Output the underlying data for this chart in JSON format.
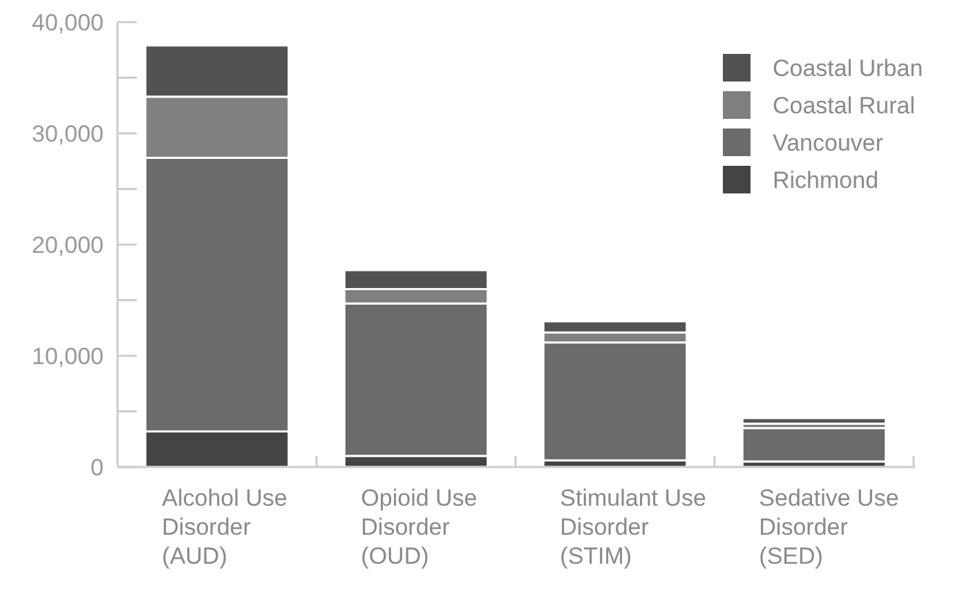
{
  "chart_data": {
    "type": "bar",
    "stacked": true,
    "categories": [
      "Alcohol Use\nDisorder\n(AUD)",
      "Opioid Use\nDisorder\n(OUD)",
      "Stimulant Use\nDisorder\n(STIM)",
      "Sedative Use\nDisorder\n(SED)"
    ],
    "series": [
      {
        "name": "Richmond",
        "color": "#444444",
        "values": [
          3200,
          1000,
          600,
          500
        ]
      },
      {
        "name": "Vancouver",
        "color": "#6b6b6b",
        "values": [
          24600,
          13700,
          10600,
          3000
        ]
      },
      {
        "name": "Coastal Rural",
        "color": "#808080",
        "values": [
          5500,
          1300,
          900,
          400
        ]
      },
      {
        "name": "Coastal Urban",
        "color": "#525252",
        "values": [
          4600,
          1700,
          1000,
          500
        ]
      }
    ],
    "ylim": [
      0,
      40000
    ],
    "yticks": [
      0,
      {
        "value": 5000,
        "label": null
      },
      {
        "value": 10000,
        "label": "10,000"
      },
      {
        "value": 15000,
        "label": null
      },
      {
        "value": 20000,
        "label": "20,000"
      },
      {
        "value": 25000,
        "label": null
      },
      {
        "value": 30000,
        "label": "30,000"
      },
      {
        "value": 35000,
        "label": null
      },
      {
        "value": 40000,
        "label": "40,000"
      }
    ],
    "legend": "top right",
    "grid": false
  }
}
